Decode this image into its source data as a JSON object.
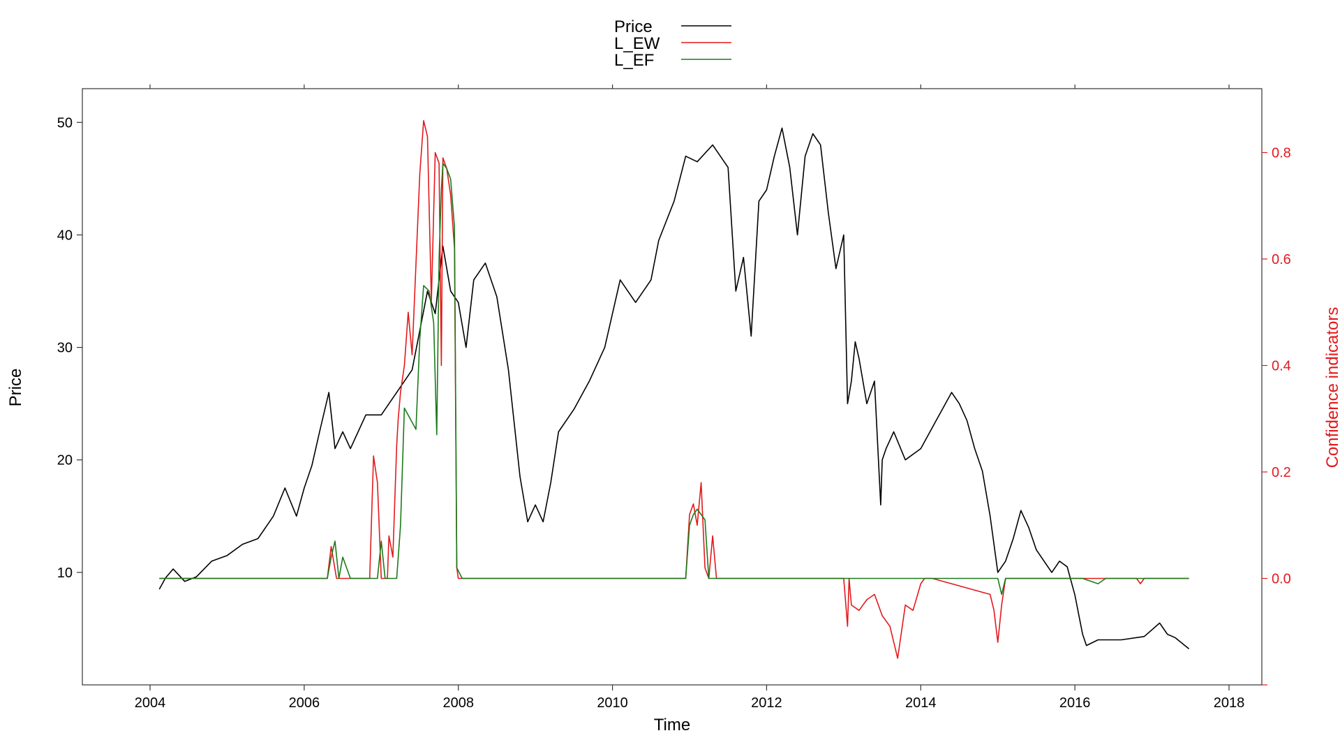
{
  "chart_data": {
    "type": "line",
    "xlabel": "Time",
    "ylabel": "Price",
    "ylabel_right": "Confidence indicators",
    "xlim": [
      2004,
      2018
    ],
    "ylim": [
      0,
      53
    ],
    "ylim_right": [
      -0.2,
      0.92
    ],
    "x_ticks": [
      2004,
      2006,
      2008,
      2010,
      2012,
      2014,
      2016,
      2018
    ],
    "y_ticks": [
      10,
      20,
      30,
      40,
      50
    ],
    "y_ticks_right": [
      -0.2,
      0.0,
      0.2,
      0.4,
      0.6,
      0.8
    ],
    "y_tick_labels_right": [
      "",
      "0.0",
      "0.2",
      "0.4",
      "0.6",
      "0.8"
    ],
    "legend_position": "top-center",
    "grid": false,
    "colors": {
      "price": "#000000",
      "l_ew": "#e3191c",
      "l_ef": "#1a7a1a",
      "right_axis": "#e3191c"
    },
    "series": [
      {
        "name": "Price",
        "axis": "left",
        "color": "#000000",
        "x": [
          2004.12,
          2004.2,
          2004.3,
          2004.45,
          2004.6,
          2004.8,
          2005.0,
          2005.2,
          2005.4,
          2005.6,
          2005.75,
          2005.9,
          2006.0,
          2006.1,
          2006.2,
          2006.32,
          2006.4,
          2006.5,
          2006.6,
          2006.8,
          2007.0,
          2007.2,
          2007.4,
          2007.5,
          2007.6,
          2007.7,
          2007.8,
          2007.9,
          2008.0,
          2008.1,
          2008.2,
          2008.35,
          2008.5,
          2008.65,
          2008.8,
          2008.9,
          2009.0,
          2009.1,
          2009.2,
          2009.3,
          2009.5,
          2009.7,
          2009.9,
          2010.1,
          2010.3,
          2010.5,
          2010.6,
          2010.8,
          2010.95,
          2011.1,
          2011.3,
          2011.5,
          2011.6,
          2011.7,
          2011.8,
          2011.9,
          2012.0,
          2012.1,
          2012.2,
          2012.3,
          2012.4,
          2012.5,
          2012.6,
          2012.7,
          2012.8,
          2012.9,
          2013.0,
          2013.05,
          2013.1,
          2013.15,
          2013.2,
          2013.3,
          2013.4,
          2013.48,
          2013.5,
          2013.55,
          2013.65,
          2013.8,
          2014.0,
          2014.2,
          2014.4,
          2014.5,
          2014.6,
          2014.7,
          2014.8,
          2014.9,
          2015.0,
          2015.1,
          2015.2,
          2015.3,
          2015.4,
          2015.5,
          2015.6,
          2015.7,
          2015.8,
          2015.9,
          2016.0,
          2016.1,
          2016.15,
          2016.3,
          2016.6,
          2016.9,
          2017.1,
          2017.2,
          2017.3,
          2017.48
        ],
        "values": [
          8.5,
          9.5,
          10.3,
          9.2,
          9.6,
          11.0,
          11.5,
          12.5,
          13.0,
          15.0,
          17.5,
          15.0,
          17.5,
          19.5,
          22.5,
          26.0,
          21.0,
          22.5,
          21.0,
          24.0,
          24.0,
          26.0,
          28.0,
          31.5,
          35.0,
          33.0,
          39.0,
          35.0,
          34.0,
          30.0,
          36.0,
          37.5,
          34.5,
          28.0,
          18.5,
          14.5,
          16.0,
          14.5,
          18.0,
          22.5,
          24.5,
          27.0,
          30.0,
          36.0,
          34.0,
          36.0,
          39.5,
          43.0,
          47.0,
          46.5,
          48.0,
          46.0,
          35.0,
          38.0,
          31.0,
          43.0,
          44.0,
          47.0,
          49.5,
          46.0,
          40.0,
          47.0,
          49.0,
          48.0,
          42.0,
          37.0,
          40.0,
          25.0,
          27.0,
          30.5,
          29.0,
          25.0,
          27.0,
          16.0,
          20.0,
          21.0,
          22.5,
          20.0,
          21.0,
          23.5,
          26.0,
          25.0,
          23.5,
          21.0,
          19.0,
          15.0,
          10.0,
          11.0,
          13.0,
          15.5,
          14.0,
          12.0,
          11.0,
          10.0,
          11.0,
          10.5,
          8.0,
          4.5,
          3.5,
          4.0,
          4.0,
          4.3,
          5.5,
          4.5,
          4.2,
          3.2
        ]
      },
      {
        "name": "L_EW",
        "axis": "right",
        "color": "#e3191c",
        "x": [
          2004.12,
          2006.3,
          2006.35,
          2006.42,
          2006.5,
          2006.6,
          2006.85,
          2006.9,
          2006.95,
          2007.0,
          2007.08,
          2007.1,
          2007.15,
          2007.2,
          2007.22,
          2007.25,
          2007.3,
          2007.35,
          2007.4,
          2007.5,
          2007.55,
          2007.6,
          2007.65,
          2007.7,
          2007.75,
          2007.78,
          2007.8,
          2007.85,
          2007.9,
          2007.95,
          2007.98,
          2008.0,
          2008.05,
          2008.1,
          2010.95,
          2011.0,
          2011.05,
          2011.1,
          2011.15,
          2011.2,
          2011.25,
          2011.3,
          2011.35,
          2011.4,
          2011.45,
          2013.0,
          2013.05,
          2013.07,
          2013.1,
          2013.2,
          2013.3,
          2013.4,
          2013.5,
          2013.6,
          2013.7,
          2013.8,
          2013.9,
          2014.0,
          2014.05,
          2014.1,
          2014.12,
          2014.15,
          2014.9,
          2014.95,
          2015.0,
          2015.05,
          2015.1,
          2015.15,
          2016.8,
          2016.85,
          2016.9,
          2016.95,
          2017.48
        ],
        "values": [
          0.0,
          0.0,
          0.06,
          0.0,
          0.0,
          0.0,
          0.0,
          0.23,
          0.18,
          0.0,
          0.0,
          0.08,
          0.04,
          0.25,
          0.3,
          0.35,
          0.4,
          0.5,
          0.42,
          0.76,
          0.86,
          0.83,
          0.52,
          0.8,
          0.78,
          0.4,
          0.79,
          0.77,
          0.72,
          0.62,
          0.02,
          0.0,
          0.0,
          0.0,
          0.0,
          0.12,
          0.14,
          0.1,
          0.18,
          0.02,
          0.0,
          0.08,
          0.0,
          0.0,
          0.0,
          0.0,
          -0.09,
          0.0,
          -0.05,
          -0.06,
          -0.04,
          -0.03,
          -0.07,
          -0.09,
          -0.15,
          -0.05,
          -0.06,
          -0.01,
          0.0,
          0.0,
          0.0,
          0.0,
          -0.03,
          -0.06,
          -0.12,
          -0.05,
          0.0,
          0.0,
          0.0,
          -0.01,
          0.0,
          0.0,
          0.0
        ]
      },
      {
        "name": "L_EF",
        "axis": "right",
        "color": "#1a7a1a",
        "x": [
          2004.12,
          2006.3,
          2006.35,
          2006.4,
          2006.45,
          2006.5,
          2006.6,
          2006.95,
          2007.0,
          2007.05,
          2007.2,
          2007.25,
          2007.3,
          2007.45,
          2007.5,
          2007.55,
          2007.62,
          2007.68,
          2007.72,
          2007.75,
          2007.78,
          2007.8,
          2007.85,
          2007.9,
          2007.95,
          2007.98,
          2008.05,
          2010.95,
          2011.0,
          2011.05,
          2011.1,
          2011.15,
          2011.2,
          2011.25,
          2011.3,
          2015.0,
          2015.05,
          2015.1,
          2016.0,
          2016.1,
          2016.3,
          2016.4,
          2016.5,
          2017.48
        ],
        "values": [
          0.0,
          0.0,
          0.04,
          0.07,
          0.0,
          0.04,
          0.0,
          0.0,
          0.07,
          0.0,
          0.0,
          0.1,
          0.32,
          0.28,
          0.45,
          0.55,
          0.54,
          0.48,
          0.27,
          0.6,
          0.73,
          0.78,
          0.77,
          0.75,
          0.66,
          0.02,
          0.0,
          0.0,
          0.1,
          0.12,
          0.13,
          0.12,
          0.11,
          0.0,
          0.0,
          0.0,
          -0.03,
          0.0,
          0.0,
          0.0,
          -0.01,
          0.0,
          0.0,
          0.0
        ]
      }
    ]
  }
}
